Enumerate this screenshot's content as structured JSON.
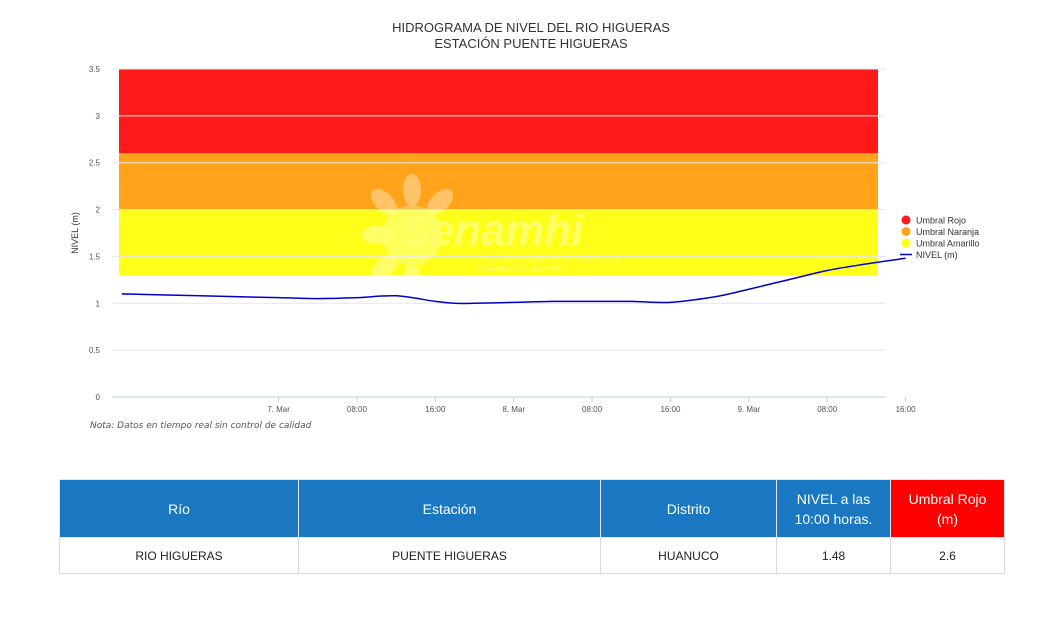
{
  "chart_data": {
    "type": "line",
    "title": "HIDROGRAMA DE NIVEL DEL RIO HIGUERAS",
    "subtitle": "ESTACIÓN PUENTE HIGUERAS",
    "ylabel": "NIVEL (m)",
    "ylim": [
      0,
      3.5
    ],
    "y_ticks": [
      "0",
      "0.5",
      "1",
      "1.5",
      "2",
      "2.5",
      "3",
      "3.5"
    ],
    "x_ticks": [
      "7. Mar",
      "08:00",
      "16:00",
      "8. Mar",
      "08:00",
      "16:00",
      "9. Mar",
      "08:00",
      "16:00"
    ],
    "x_range_hours": [
      -17,
      62
    ],
    "thresholds": [
      {
        "name": "Umbral Rojo",
        "from": 2.6,
        "to": 3.5,
        "color": "#ff1a1a"
      },
      {
        "name": "Umbral Naranja",
        "from": 2.0,
        "to": 2.6,
        "color": "#ffa31a"
      },
      {
        "name": "Umbral Amarillo",
        "from": 1.3,
        "to": 2.0,
        "color": "#ffff1a"
      }
    ],
    "series": [
      {
        "name": "NIVEL (m)",
        "color": "#0000cc",
        "x_hours": [
          -16,
          -12,
          -8,
          -4,
          0,
          4,
          8,
          12,
          16,
          18,
          20,
          24,
          28,
          32,
          36,
          40,
          44,
          46,
          48,
          52,
          56,
          60,
          64
        ],
        "values": [
          1.1,
          1.09,
          1.08,
          1.07,
          1.06,
          1.05,
          1.06,
          1.08,
          1.02,
          1.0,
          1.0,
          1.01,
          1.02,
          1.02,
          1.02,
          1.01,
          1.06,
          1.1,
          1.15,
          1.25,
          1.35,
          1.42,
          1.48
        ]
      }
    ],
    "legend_position": "right"
  },
  "watermark": {
    "brand": "Senamhi",
    "line1": "SERVICIO NACIONAL DE METEOROLOGÍA",
    "line2": "E HIDROLOGÍA DEL PERÚ"
  },
  "note": "Nota: Datos en tiempo real sin control de calidad",
  "table": {
    "headers": [
      "Río",
      "Estación",
      "Distrito",
      "NIVEL a las 10:00 horas.",
      "Umbral Rojo (m)"
    ],
    "row": [
      "RIO HIGUERAS",
      "PUENTE HIGUERAS",
      "HUANUCO",
      "1.48",
      "2.6"
    ]
  }
}
